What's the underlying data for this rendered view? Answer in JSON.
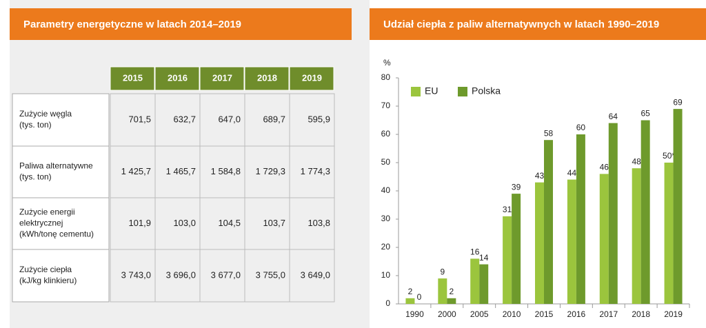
{
  "table": {
    "title": "Parametry energetyczne w latach 2014–2019",
    "columns": [
      "2015",
      "2016",
      "2017",
      "2018",
      "2019"
    ],
    "rows": [
      {
        "label": [
          "Zużycie węgla",
          "(tys. ton)"
        ],
        "values": [
          "701,5",
          "632,7",
          "647,0",
          "689,7",
          "595,9"
        ]
      },
      {
        "label": [
          "Paliwa alternatywne",
          "(tys. ton)"
        ],
        "values": [
          "1 425,7",
          "1 465,7",
          "1 584,8",
          "1 729,3",
          "1 774,3"
        ]
      },
      {
        "label": [
          "Zużycie energii",
          "elektrycznej",
          "(kWh/tonę cementu)"
        ],
        "values": [
          "101,9",
          "103,0",
          "104,5",
          "103,7",
          "103,8"
        ]
      },
      {
        "label": [
          "Zużycie ciepła",
          "(kJ/kg klinkieru)"
        ],
        "values": [
          "3 743,0",
          "3 696,0",
          "3 677,0",
          "3 755,0",
          "3 649,0"
        ]
      }
    ]
  },
  "chart_data": {
    "type": "bar",
    "title": "Udział ciepła z paliw alternatywnych w latach 1990–2019",
    "y_label": "%",
    "categories": [
      "1990",
      "2000",
      "2005",
      "2010",
      "2015",
      "2016",
      "2017",
      "2018",
      "2019"
    ],
    "series": [
      {
        "name": "EU",
        "color": "#9bc53d",
        "values": [
          2,
          9,
          16,
          31,
          43,
          44,
          46,
          48,
          50
        ],
        "value_labels": [
          "2",
          "9",
          "16",
          "31",
          "43",
          "44",
          "46",
          "48",
          "50*"
        ]
      },
      {
        "name": "Polska",
        "color": "#6e9a2c",
        "values": [
          0,
          2,
          14,
          39,
          58,
          60,
          64,
          65,
          69
        ]
      }
    ],
    "ylim": [
      0,
      80
    ],
    "yticks": [
      0,
      10,
      20,
      30,
      40,
      50,
      60,
      70,
      80
    ],
    "legend": "top-left"
  }
}
